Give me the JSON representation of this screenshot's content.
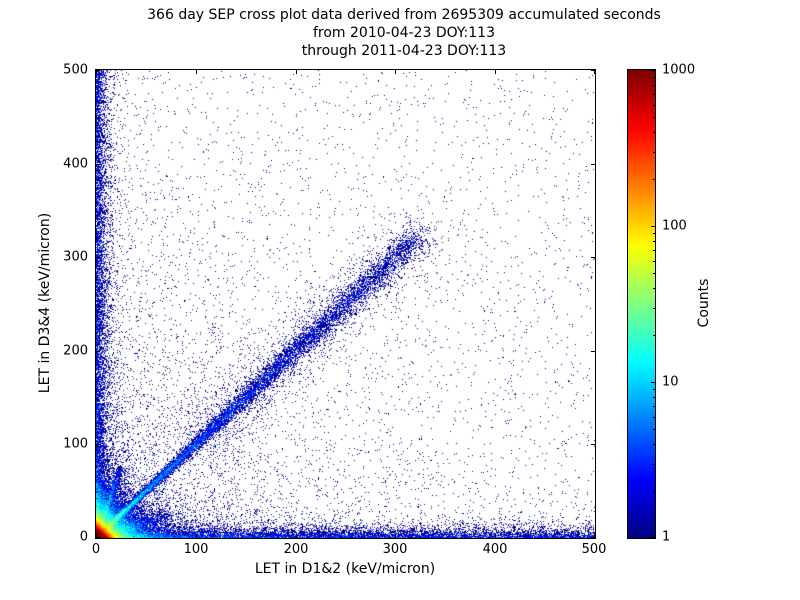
{
  "figure": {
    "title_lines": [
      "366 day SEP cross plot data derived from 2695309 accumulated seconds",
      "from 2010-04-23 DOY:113",
      "through 2011-04-23 DOY:113"
    ]
  },
  "chart_data": {
    "type": "scatter",
    "subtype": "2d-histogram-cross-plot",
    "title": "366 day SEP cross plot data derived from 2695309 accumulated seconds from 2010-04-23 DOY:113 through 2011-04-23 DOY:113",
    "xlabel": "LET in D1&2 (keV/micron)",
    "ylabel": "LET in D3&4 (keV/micron)",
    "xlim": [
      0,
      500
    ],
    "ylim": [
      0,
      500
    ],
    "xticks": [
      0,
      100,
      200,
      300,
      400,
      500
    ],
    "yticks": [
      0,
      100,
      200,
      300,
      400,
      500
    ],
    "grid": false,
    "background_color": "#ffffff",
    "axis_color": "#000000",
    "colorbar": {
      "label": "Counts",
      "scale": "log",
      "ticks": [
        1000,
        100,
        10,
        1
      ],
      "tick_fractions_from_top": [
        0,
        0.3333,
        0.6667,
        1
      ],
      "colormap": "jet",
      "stops": [
        {
          "pos": 0.0,
          "color": "#7F0000"
        },
        {
          "pos": 0.125,
          "color": "#FF0000"
        },
        {
          "pos": 0.375,
          "color": "#FFFF00"
        },
        {
          "pos": 0.625,
          "color": "#00FFFF"
        },
        {
          "pos": 0.875,
          "color": "#0000FF"
        },
        {
          "pos": 1.0,
          "color": "#00007F"
        }
      ]
    },
    "distribution_features": [
      {
        "name": "origin-core-hotspot",
        "type": "exp2d",
        "n": 150000,
        "sx": 3.5,
        "sy": 3.5
      },
      {
        "name": "origin-halo",
        "type": "exp2d",
        "n": 30000,
        "sx": 14,
        "sy": 14
      },
      {
        "name": "lower-left-sparse-cloud",
        "type": "exp2d",
        "n": 4000,
        "sx": 120,
        "sy": 120
      },
      {
        "name": "main-diagonal-ridge",
        "type": "ray",
        "n": 14000,
        "slope": 1,
        "tmin": 0,
        "tmax": 320,
        "tpow": 2.2,
        "sigma0": 1,
        "sigmak": 0.02
      },
      {
        "name": "diagonal-scatter-band",
        "type": "ray",
        "n": 2200,
        "slope": 1,
        "tmin": 100,
        "tmax": 330,
        "tpow": 1,
        "sigma0": 15,
        "sigmak": 0
      },
      {
        "name": "steep-origin-ray",
        "type": "ray",
        "n": 1500,
        "slope": 3,
        "tmin": 0,
        "tmax": 25,
        "tpow": 1.8,
        "sigma0": 0.8,
        "sigmak": 0.05
      },
      {
        "name": "shallow-origin-ray",
        "type": "ray",
        "n": 1500,
        "slope": 0.33,
        "tmin": 0,
        "tmax": 75,
        "tpow": 1.8,
        "sigma0": 0.8,
        "sigmak": 0.05
      },
      {
        "name": "x-axis-band",
        "type": "band-x",
        "n": 9000,
        "pow": 1.4,
        "scale": 5
      },
      {
        "name": "y-axis-band",
        "type": "band-y",
        "n": 7000,
        "pow": 1.2,
        "scale": 6
      },
      {
        "name": "uniform-background",
        "type": "uniform",
        "n": 2600
      }
    ],
    "render": {
      "seed": 42,
      "max_count": 1000
    }
  }
}
